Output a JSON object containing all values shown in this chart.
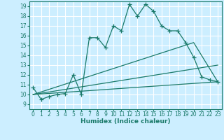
{
  "bg_color": "#cceeff",
  "grid_color": "#ffffff",
  "line_color": "#1a7a6a",
  "xlabel": "Humidex (Indice chaleur)",
  "xlim": [
    -0.5,
    23.5
  ],
  "ylim": [
    8.5,
    19.5
  ],
  "yticks": [
    9,
    10,
    11,
    12,
    13,
    14,
    15,
    16,
    17,
    18,
    19
  ],
  "xticks": [
    0,
    1,
    2,
    3,
    4,
    5,
    6,
    7,
    8,
    9,
    10,
    11,
    12,
    13,
    14,
    15,
    16,
    17,
    18,
    19,
    20,
    21,
    22,
    23
  ],
  "main_x": [
    0,
    1,
    2,
    3,
    4,
    5,
    6,
    7,
    8,
    9,
    10,
    11,
    12,
    13,
    14,
    15,
    16,
    17,
    18,
    19,
    20,
    21,
    22,
    23
  ],
  "main_y": [
    10.7,
    9.5,
    9.8,
    10.0,
    10.1,
    12.0,
    10.0,
    15.8,
    15.8,
    14.8,
    17.0,
    16.5,
    19.2,
    18.0,
    19.2,
    18.5,
    17.0,
    16.5,
    16.5,
    15.3,
    13.8,
    11.8,
    11.5,
    11.3
  ],
  "line2_x": [
    0,
    20,
    23
  ],
  "line2_y": [
    10.0,
    15.3,
    11.3
  ],
  "line3_x": [
    0,
    23
  ],
  "line3_y": [
    10.0,
    13.0
  ],
  "line4_x": [
    0,
    23
  ],
  "line4_y": [
    10.0,
    11.3
  ],
  "font_size": 6.5,
  "tick_font_size": 5.5,
  "marker_size": 3
}
